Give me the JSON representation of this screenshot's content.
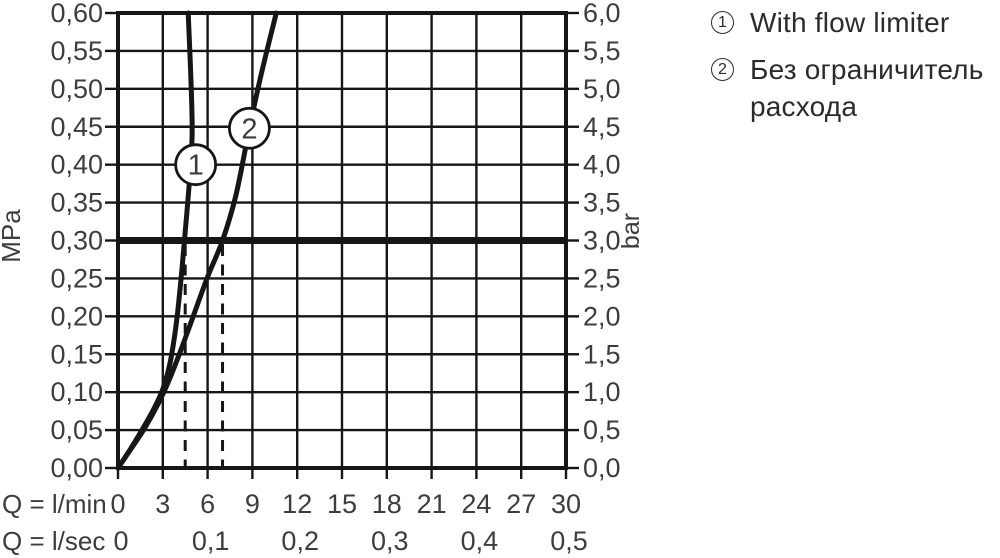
{
  "colors": {
    "background": "#ffffff",
    "ink": "#161616",
    "axis_text": "#3d3d3d",
    "legend_text": "#2b2b2b"
  },
  "legend": {
    "items": [
      {
        "number": "1",
        "lines": [
          "With flow limiter",
          ""
        ]
      },
      {
        "number": "2",
        "lines": [
          "Без ограничитель",
          "расхода"
        ]
      }
    ]
  },
  "chart_data": {
    "type": "line",
    "grid": "on",
    "x_axis": {
      "range": [
        0,
        30
      ],
      "grid_step": 3,
      "rows": [
        {
          "row_label": "Q = l/min",
          "ticks": [
            {
              "q": 0,
              "text": "0"
            },
            {
              "q": 3,
              "text": "3"
            },
            {
              "q": 6,
              "text": "6"
            },
            {
              "q": 9,
              "text": "9"
            },
            {
              "q": 12,
              "text": "12"
            },
            {
              "q": 15,
              "text": "15"
            },
            {
              "q": 18,
              "text": "18"
            },
            {
              "q": 21,
              "text": "21"
            },
            {
              "q": 24,
              "text": "24"
            },
            {
              "q": 27,
              "text": "27"
            },
            {
              "q": 30,
              "text": "30"
            }
          ]
        },
        {
          "row_label": "Q = l/sec",
          "ticks": [
            {
              "q": 0,
              "text": "0"
            },
            {
              "q": 6,
              "text": "0,1"
            },
            {
              "q": 12,
              "text": "0,2"
            },
            {
              "q": 18,
              "text": "0,3"
            },
            {
              "q": 24,
              "text": "0,4"
            },
            {
              "q": 30,
              "text": "0,5"
            }
          ]
        }
      ]
    },
    "y_axis_left": {
      "unit": "MPa",
      "range": [
        0,
        0.6
      ],
      "grid_step": 0.05,
      "tick_labels_top_to_bottom": [
        "0,60",
        "0,55",
        "0,50",
        "0,45",
        "0,40",
        "0,35",
        "0,30",
        "0,25",
        "0,20",
        "0,15",
        "0,10",
        "0,05",
        "0,00"
      ]
    },
    "y_axis_right": {
      "unit": "bar",
      "range": [
        0,
        6
      ],
      "tick_labels_top_to_bottom": [
        "6,0",
        "5,5",
        "5,0",
        "4,5",
        "4,0",
        "3,5",
        "3,0",
        "2,5",
        "2,0",
        "1,5",
        "1,0",
        "0,5",
        "0,0"
      ]
    },
    "reference_line": {
      "mpa": 0.3,
      "bar": 3.0
    },
    "dashed_guides_lmin": [
      4.5,
      7.0
    ],
    "series": [
      {
        "number": "1",
        "name": "With flow limiter",
        "marker_at": {
          "q": 5.2,
          "mpa": 0.4
        },
        "flow_at_3bar_lmin": 4.5,
        "points_q_mpa": [
          [
            0,
            0
          ],
          [
            0.8,
            0.024
          ],
          [
            1.6,
            0.05
          ],
          [
            2.4,
            0.078
          ],
          [
            3.0,
            0.104
          ],
          [
            3.5,
            0.14
          ],
          [
            3.9,
            0.19
          ],
          [
            4.2,
            0.245
          ],
          [
            4.45,
            0.3
          ],
          [
            4.75,
            0.37
          ],
          [
            4.95,
            0.43
          ],
          [
            4.95,
            0.47
          ],
          [
            4.85,
            0.53
          ],
          [
            4.7,
            0.6
          ]
        ]
      },
      {
        "number": "2",
        "name": "Без ограничитель расхода",
        "marker_at": {
          "q": 8.8,
          "mpa": 0.448
        },
        "flow_at_3bar_lmin": 7.0,
        "points_q_mpa": [
          [
            0,
            0
          ],
          [
            0.9,
            0.026
          ],
          [
            1.8,
            0.053
          ],
          [
            2.7,
            0.085
          ],
          [
            3.4,
            0.115
          ],
          [
            4.2,
            0.155
          ],
          [
            5.0,
            0.198
          ],
          [
            6.0,
            0.252
          ],
          [
            7.0,
            0.3
          ],
          [
            7.9,
            0.36
          ],
          [
            8.8,
            0.448
          ],
          [
            9.6,
            0.52
          ],
          [
            10.6,
            0.6
          ]
        ]
      }
    ]
  }
}
